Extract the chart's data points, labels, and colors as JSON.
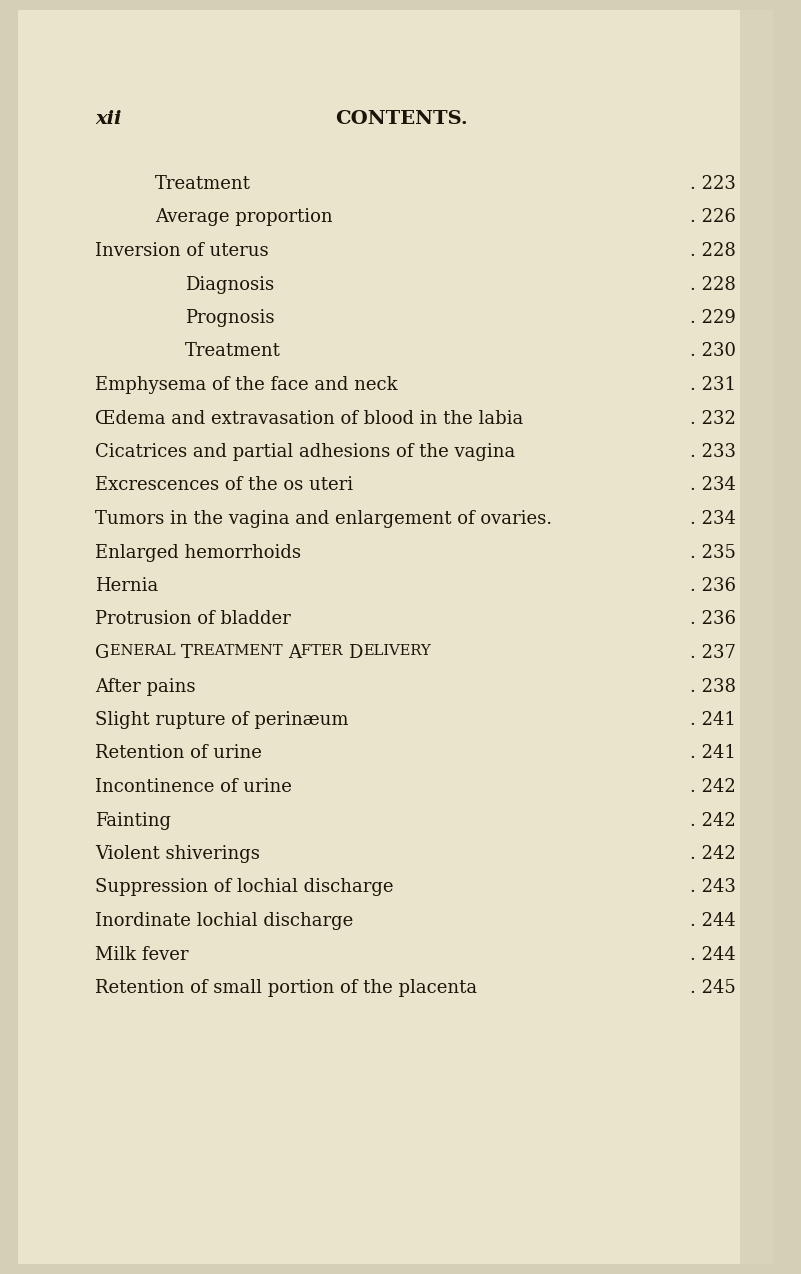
{
  "bg_color": "#d4d0b8",
  "page_color": "#e8e5cc",
  "text_color": "#1c1408",
  "title_left": "xii",
  "title_center": "CONTENTS.",
  "header_fontsize": 14,
  "body_fontsize": 13,
  "entries": [
    {
      "text": "Treatment",
      "indent": 1,
      "page": "223"
    },
    {
      "text": "Average proportion",
      "indent": 1,
      "page": "226"
    },
    {
      "text": "Inversion of uterus",
      "indent": 0,
      "page": "228"
    },
    {
      "text": "Diagnosis",
      "indent": 2,
      "page": "228"
    },
    {
      "text": "Prognosis",
      "indent": 2,
      "page": "229"
    },
    {
      "text": "Treatment",
      "indent": 2,
      "page": "230"
    },
    {
      "text": "Emphysema of the face and neck",
      "indent": 0,
      "page": "231"
    },
    {
      "text": "Œdema and extravasation of blood in the labia",
      "indent": 0,
      "page": "232"
    },
    {
      "text": "Cicatrices and partial adhesions of the vagina",
      "indent": 0,
      "page": "233"
    },
    {
      "text": "Excrescences of the os uteri",
      "indent": 0,
      "page": "234"
    },
    {
      "text": "Tumors in the vagina and enlargement of ovaries.",
      "indent": 0,
      "page": "234",
      "no_dot_leader": true
    },
    {
      "text": "Enlarged hemorrhoids",
      "indent": 0,
      "page": "235"
    },
    {
      "text": "Hernia",
      "indent": 0,
      "page": "236"
    },
    {
      "text": "Protrusion of bladder",
      "indent": 0,
      "page": "236"
    },
    {
      "text": "GENERAL TREATMENT AFTER DELIVERY",
      "indent": 0,
      "page": "237",
      "small_caps": true
    },
    {
      "text": "After pains",
      "indent": 0,
      "page": "238"
    },
    {
      "text": "Slight rupture of perinæum",
      "indent": 0,
      "page": "241"
    },
    {
      "text": "Retention of urine",
      "indent": 0,
      "page": "241"
    },
    {
      "text": "Incontinence of urine",
      "indent": 0,
      "page": "242"
    },
    {
      "text": "Fainting",
      "indent": 0,
      "page": "242"
    },
    {
      "text": "Violent shiverings",
      "indent": 0,
      "page": "242"
    },
    {
      "text": "Suppression of lochial discharge",
      "indent": 0,
      "page": "243"
    },
    {
      "text": "Inordinate lochial discharge",
      "indent": 0,
      "page": "244"
    },
    {
      "text": "Milk fever",
      "indent": 0,
      "page": "244"
    },
    {
      "text": "Retention of small portion of the placenta",
      "indent": 0,
      "page": "245"
    }
  ]
}
